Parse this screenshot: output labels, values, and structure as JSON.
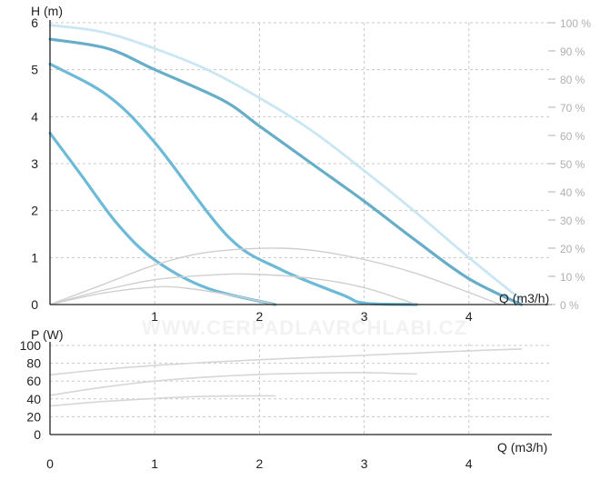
{
  "watermark": "WWW.CERPADLAVRCHLABI.CZ",
  "chart_data": [
    {
      "type": "line",
      "xlabel": "Q (m3/h)",
      "ylabel": "H (m)",
      "y2label": "",
      "xlim": [
        0,
        4.6
      ],
      "ylim": [
        0,
        6
      ],
      "y2lim": [
        0,
        100
      ],
      "x_ticks": [
        "0",
        "1",
        "2",
        "3",
        "4"
      ],
      "y_ticks": [
        "0",
        "1",
        "2",
        "3",
        "4",
        "5",
        "6"
      ],
      "y2_ticks": [
        "0 %",
        "10 %",
        "20 %",
        "30 %",
        "40 %",
        "50 %",
        "60 %",
        "70 %",
        "80 %",
        "90 %",
        "100 %"
      ],
      "grid": true,
      "series": [
        {
          "style": "head-max-dotted",
          "color": "#c9e6f2",
          "x": [
            0,
            0.5,
            1.0,
            1.5,
            2.0,
            2.5,
            3.0,
            3.5,
            4.0,
            4.5
          ],
          "y": [
            5.95,
            5.8,
            5.45,
            5.0,
            4.4,
            3.7,
            2.85,
            1.95,
            1.0,
            0.1
          ]
        },
        {
          "style": "head-curve",
          "color": "#66aec8",
          "x": [
            0,
            0.55,
            1.0,
            1.65,
            2.0,
            2.5,
            3.0,
            3.5,
            4.0,
            4.5
          ],
          "y": [
            5.65,
            5.45,
            5.0,
            4.35,
            3.8,
            3.0,
            2.2,
            1.35,
            0.55,
            0.0
          ]
        },
        {
          "style": "head-curve",
          "color": "#6cbad8",
          "x": [
            0,
            0.55,
            1.0,
            1.7,
            2.2,
            2.8,
            3.0,
            3.5
          ],
          "y": [
            5.12,
            4.45,
            3.45,
            1.45,
            0.75,
            0.2,
            0.03,
            0.0
          ]
        },
        {
          "style": "head-curve",
          "color": "#6cbad8",
          "x": [
            0,
            0.3,
            0.65,
            1.0,
            1.5,
            2.15
          ],
          "y": [
            3.65,
            2.75,
            1.7,
            0.95,
            0.35,
            0.0
          ]
        },
        {
          "style": "efficiency",
          "color": "#cfcfcf",
          "x": [
            0,
            0.5,
            1.0,
            1.5,
            2.2,
            2.8,
            3.5,
            4.3
          ],
          "y": [
            0,
            7,
            14,
            18.5,
            20,
            17.5,
            11,
            0
          ]
        },
        {
          "style": "efficiency",
          "color": "#cfcfcf",
          "x": [
            0,
            0.5,
            1.0,
            1.5,
            1.9,
            2.5,
            3.0,
            3.5
          ],
          "y": [
            0,
            5,
            8.8,
            10.4,
            10.8,
            9.3,
            6,
            0
          ]
        },
        {
          "style": "efficiency",
          "color": "#cfcfcf",
          "x": [
            0,
            0.5,
            1.0,
            1.3,
            1.7,
            2.15
          ],
          "y": [
            0,
            4,
            6.2,
            5.8,
            3.5,
            0
          ]
        }
      ]
    },
    {
      "type": "line",
      "xlabel": "Q (m3/h)",
      "ylabel": "P (W)",
      "xlim": [
        0,
        4.6
      ],
      "ylim": [
        0,
        100
      ],
      "x_ticks": [
        "0",
        "1",
        "2",
        "3",
        "4"
      ],
      "y_ticks": [
        "0",
        "20",
        "40",
        "60",
        "80",
        "100"
      ],
      "grid": true,
      "series": [
        {
          "style": "power",
          "color": "#d6d6d6",
          "x": [
            0,
            0.5,
            1.0,
            1.5,
            2.0,
            2.5,
            3.0,
            3.5,
            4.0,
            4.5
          ],
          "y": [
            67,
            73,
            77.5,
            81,
            84,
            86.5,
            89,
            91.5,
            94,
            96
          ]
        },
        {
          "style": "power",
          "color": "#d6d6d6",
          "x": [
            0,
            0.5,
            1.0,
            1.5,
            2.0,
            2.5,
            3.0,
            3.5
          ],
          "y": [
            44,
            53,
            60,
            64.5,
            67.5,
            69,
            69.5,
            68
          ]
        },
        {
          "style": "power",
          "color": "#d6d6d6",
          "x": [
            0,
            0.5,
            1.0,
            1.5,
            2.15
          ],
          "y": [
            32,
            37,
            40.5,
            43,
            43.5
          ]
        }
      ]
    }
  ]
}
